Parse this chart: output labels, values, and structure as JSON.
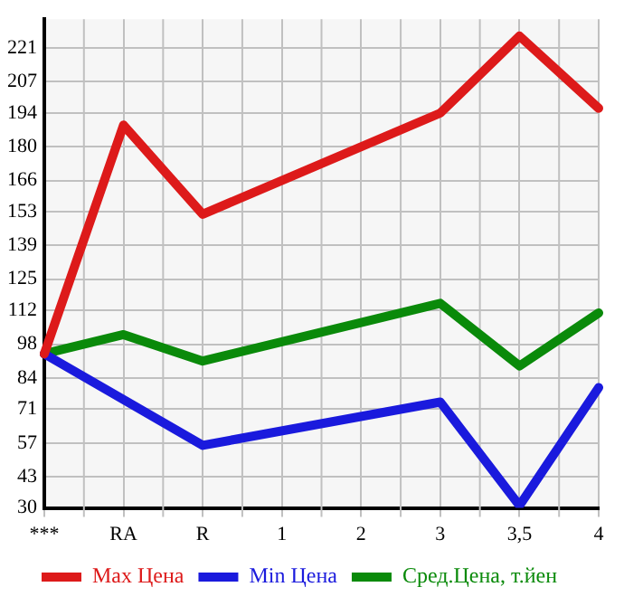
{
  "chart_data": {
    "type": "line",
    "categories": [
      "***",
      "RA",
      "R",
      "1",
      "2",
      "3",
      "3,5",
      "4"
    ],
    "series": [
      {
        "name": "Max Цена",
        "color": "#dd1a1a",
        "values": [
          94,
          189,
          152,
          null,
          null,
          194,
          226,
          196
        ]
      },
      {
        "name": "Min Цена",
        "color": "#1a1add",
        "values": [
          94,
          null,
          56,
          null,
          null,
          74,
          31,
          80
        ]
      },
      {
        "name": "Сред.Цена, т.йен",
        "color": "#0a8a0a",
        "values": [
          94,
          102,
          91,
          null,
          null,
          115,
          89,
          111
        ]
      }
    ],
    "ylim": [
      30,
      233
    ],
    "yticks": [
      30,
      43,
      57,
      71,
      84,
      98,
      112,
      125,
      139,
      153,
      166,
      180,
      194,
      207,
      221
    ],
    "grid": true,
    "legend": "bottom",
    "marker": "none",
    "line_style": "solid"
  }
}
